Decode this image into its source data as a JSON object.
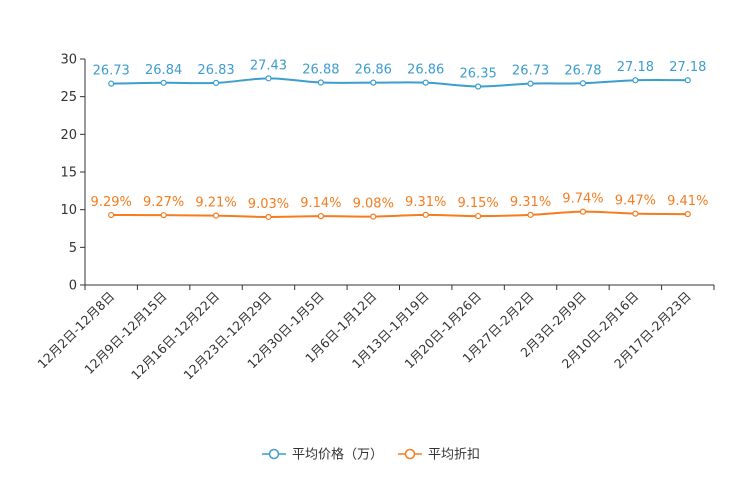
{
  "chart_data": {
    "type": "line",
    "title": "",
    "xlabel": "",
    "ylabel": "",
    "ylim": [
      0,
      30
    ],
    "yticks": [
      0,
      5,
      10,
      15,
      20,
      25,
      30
    ],
    "grid": false,
    "legend_position": "bottom-center",
    "categories": [
      "12月2日-12月8日",
      "12月9日-12月15日",
      "12月16日-12月22日",
      "12月23日-12月29日",
      "12月30日-1月5日",
      "1月6日-1月12日",
      "1月13日-1月19日",
      "1月20日-1月26日",
      "1月27日-2月2日",
      "2月3日-2月9日",
      "2月10日-2月16日",
      "2月17日-2月23日"
    ],
    "series": [
      {
        "name": "平均价格（万）",
        "color": "#3c9dd0",
        "values": [
          26.73,
          26.84,
          26.83,
          27.43,
          26.88,
          26.86,
          26.86,
          26.35,
          26.73,
          26.78,
          27.18,
          27.18
        ],
        "labels": [
          "26.73",
          "26.84",
          "26.83",
          "27.43",
          "26.88",
          "26.86",
          "26.86",
          "26.35",
          "26.73",
          "26.78",
          "27.18",
          "27.18"
        ]
      },
      {
        "name": "平均折扣",
        "color": "#f57c1f",
        "values": [
          9.29,
          9.27,
          9.21,
          9.03,
          9.14,
          9.08,
          9.31,
          9.15,
          9.31,
          9.74,
          9.47,
          9.41
        ],
        "labels": [
          "9.29%",
          "9.27%",
          "9.21%",
          "9.03%",
          "9.14%",
          "9.08%",
          "9.31%",
          "9.15%",
          "9.31%",
          "9.74%",
          "9.47%",
          "9.41%"
        ]
      }
    ]
  }
}
